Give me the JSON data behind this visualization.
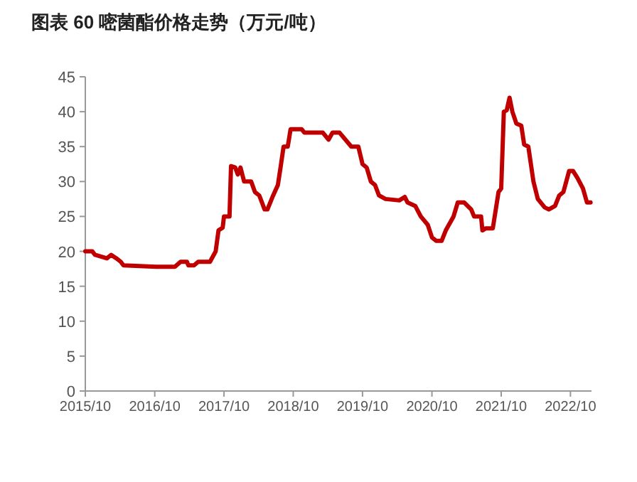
{
  "chart_data": {
    "type": "line",
    "title": "图表 60  嘧菌酯价格走势（万元/吨）",
    "xlim": [
      "2015-10-01",
      "2023-01-20"
    ],
    "ylim": [
      0,
      45
    ],
    "yticks": [
      0,
      5,
      10,
      15,
      20,
      25,
      30,
      35,
      40,
      45
    ],
    "xticks": [
      {
        "value": "2015-10",
        "label": "2015/10"
      },
      {
        "value": "2016-10",
        "label": "2016/10"
      },
      {
        "value": "2017-10",
        "label": "2017/10"
      },
      {
        "value": "2018-10",
        "label": "2018/10"
      },
      {
        "value": "2019-10",
        "label": "2019/10"
      },
      {
        "value": "2020-10",
        "label": "2020/10"
      },
      {
        "value": "2021-10",
        "label": "2021/10"
      },
      {
        "value": "2022-10",
        "label": "2022/10"
      }
    ],
    "grid": false,
    "marker": "none",
    "line_style": "solid",
    "series": [
      {
        "color": "#c00000",
        "x": [
          "2015-10-01",
          "2015-11-07",
          "2015-11-21",
          "2016-01-23",
          "2016-02-14",
          "2016-03-13",
          "2016-04-05",
          "2016-04-19",
          "2016-10-08",
          "2017-01-15",
          "2017-02-14",
          "2017-03-20",
          "2017-03-27",
          "2017-04-26",
          "2017-05-18",
          "2017-07-19",
          "2017-08-18",
          "2017-09-02",
          "2017-09-24",
          "2017-10-01",
          "2017-10-30",
          "2017-11-07",
          "2017-11-29",
          "2017-12-13",
          "2017-12-27",
          "2018-01-15",
          "2018-02-21",
          "2018-03-13",
          "2018-04-05",
          "2018-05-03",
          "2018-05-18",
          "2018-06-17",
          "2018-07-12",
          "2018-07-26",
          "2018-08-11",
          "2018-09-02",
          "2018-09-17",
          "2018-11-14",
          "2018-11-29",
          "2019-03-06",
          "2019-04-05",
          "2019-04-26",
          "2019-06-02",
          "2019-08-03",
          "2019-09-09",
          "2019-10-01",
          "2019-10-23",
          "2019-11-14",
          "2019-12-06",
          "2019-12-27",
          "2020-01-30",
          "2020-04-12",
          "2020-05-11",
          "2020-05-25",
          "2020-07-05",
          "2020-08-03",
          "2020-09-09",
          "2020-10-01",
          "2020-10-23",
          "2020-11-21",
          "2020-12-13",
          "2021-01-23",
          "2021-02-14",
          "2021-03-20",
          "2021-04-26",
          "2021-05-11",
          "2021-06-17",
          "2021-06-24",
          "2021-07-12",
          "2021-08-18",
          "2021-09-17",
          "2021-10-01",
          "2021-10-15",
          "2021-10-30",
          "2021-11-14",
          "2021-11-29",
          "2021-12-20",
          "2022-01-15",
          "2022-01-30",
          "2022-02-21",
          "2022-03-20",
          "2022-04-12",
          "2022-05-18",
          "2022-06-09",
          "2022-07-12",
          "2022-08-03",
          "2022-08-25",
          "2022-09-24",
          "2022-10-15",
          "2022-11-07",
          "2022-12-06",
          "2022-12-27",
          "2023-01-15"
        ],
        "values": [
          20,
          20,
          19.5,
          19,
          19.5,
          19,
          18.5,
          18,
          17.8,
          17.8,
          18.5,
          18.5,
          18,
          18,
          18.5,
          18.5,
          20,
          23,
          23.4,
          25,
          25,
          32.2,
          32,
          31,
          32,
          30,
          30,
          28.5,
          28,
          26,
          26,
          28,
          29.5,
          32,
          35,
          35,
          37.5,
          37.5,
          37,
          37,
          36,
          37,
          37,
          35,
          35,
          32.5,
          32,
          30,
          29.5,
          28,
          27.5,
          27.3,
          27.8,
          27,
          26.5,
          25,
          23.8,
          22,
          21.5,
          21.5,
          23,
          25,
          27,
          27,
          26,
          25,
          25,
          23,
          23.3,
          23.3,
          28.5,
          29,
          40,
          40.2,
          42,
          40,
          38.3,
          38,
          35.3,
          35,
          30,
          27.5,
          26.3,
          26,
          26.5,
          28,
          28.5,
          31.5,
          31.5,
          30.5,
          29,
          27,
          27
        ]
      }
    ]
  }
}
